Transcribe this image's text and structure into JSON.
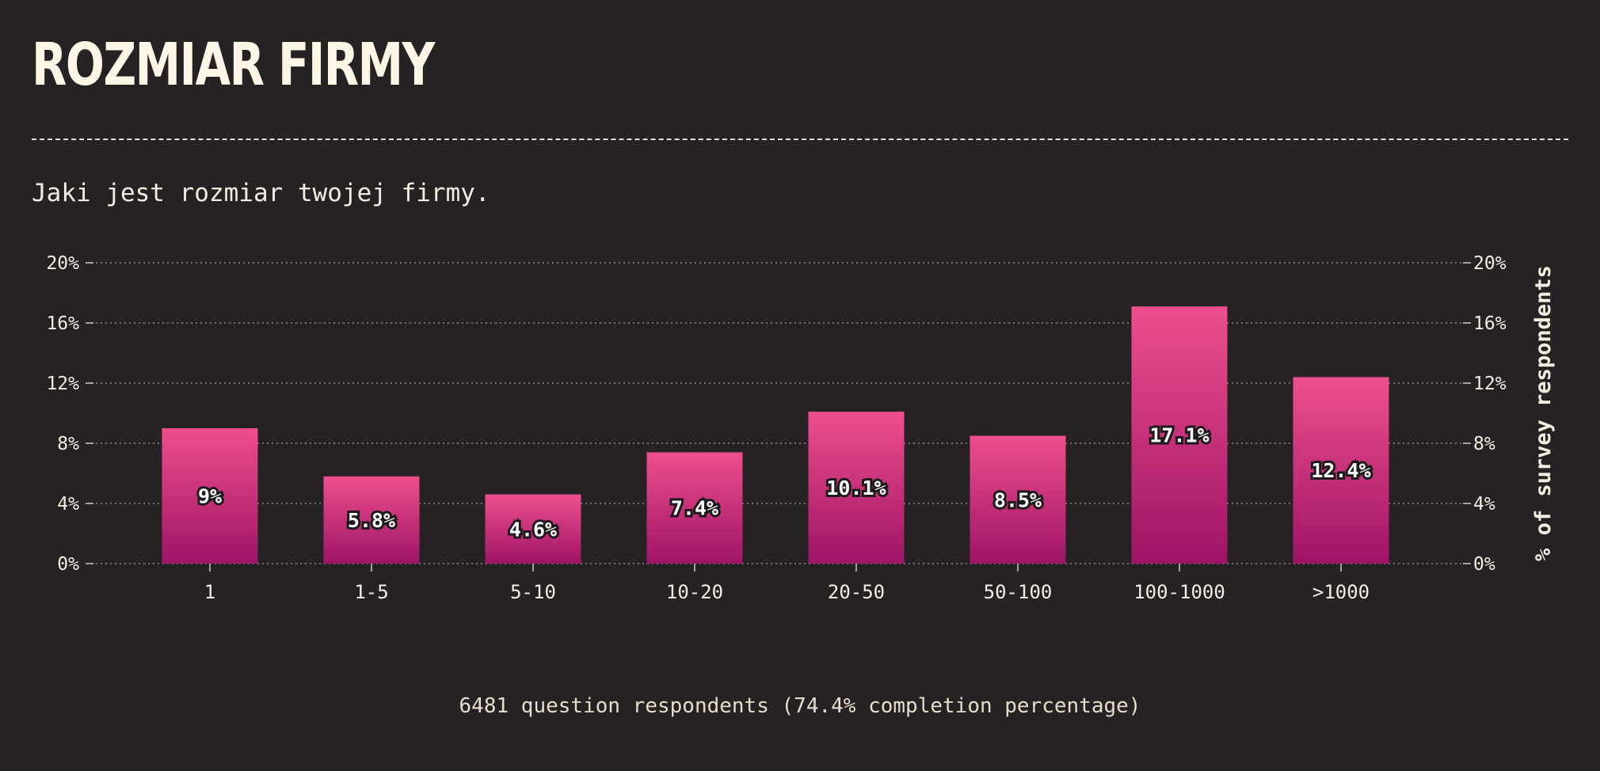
{
  "page": {
    "title": "ROZMIAR FIRMY",
    "subtitle": "Jaki jest rozmiar twojej firmy.",
    "footnote": "6481 question respondents (74.4% completion percentage)"
  },
  "colors": {
    "background": "#262224",
    "bar_top": "#ee4f8c",
    "bar_bottom": "#9e1466",
    "text": "#f3ede2"
  },
  "chart_data": {
    "type": "bar",
    "categories": [
      "1",
      "1-5",
      "5-10",
      "10-20",
      "20-50",
      "50-100",
      "100-1000",
      ">1000"
    ],
    "values": [
      9,
      5.8,
      4.6,
      7.4,
      10.1,
      8.5,
      17.1,
      12.4
    ],
    "value_labels": [
      "9%",
      "5.8%",
      "4.6%",
      "7.4%",
      "10.1%",
      "8.5%",
      "17.1%",
      "12.4%"
    ],
    "y_ticks": [
      0,
      4,
      8,
      12,
      16,
      20
    ],
    "y_tick_labels": [
      "0%",
      "4%",
      "8%",
      "12%",
      "16%",
      "20%"
    ],
    "ylim": [
      0,
      20
    ],
    "ylabel": "% of survey respondents",
    "grid": true,
    "y_axis_sides": "both"
  }
}
